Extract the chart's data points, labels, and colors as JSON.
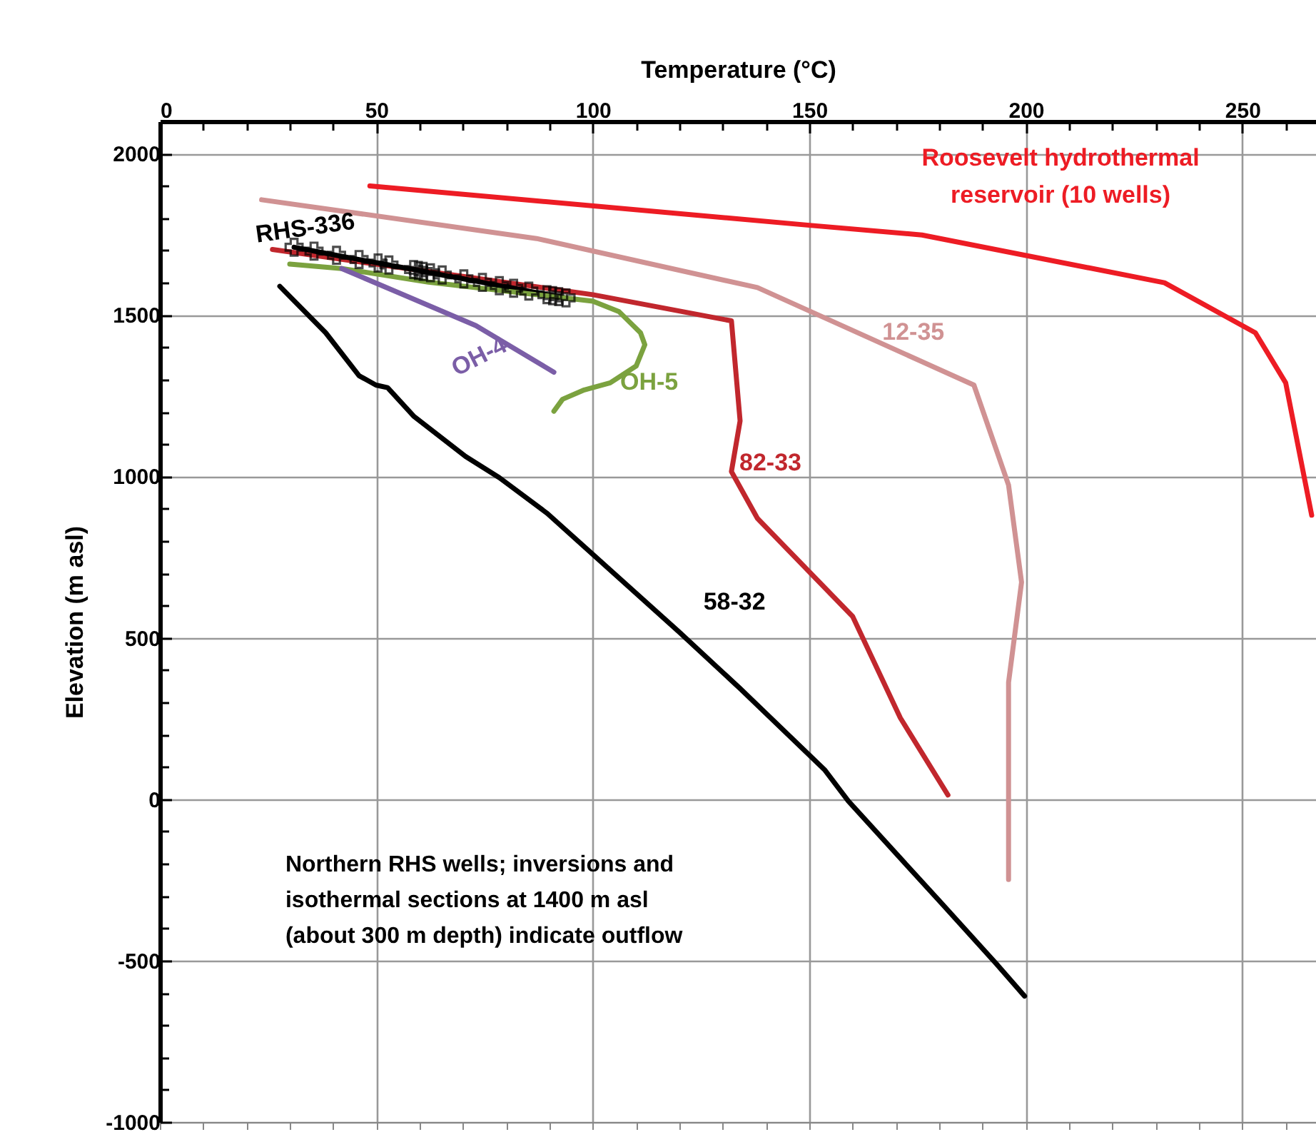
{
  "chart_data": {
    "type": "line",
    "xlabel": "Temperature (°C)",
    "ylabel": "Elevation (m asl)",
    "xlim": [
      0,
      267
    ],
    "ylim": [
      -1000,
      2100
    ],
    "xticks": [
      0,
      {
        "value": 10,
        "label": null
      },
      {
        "value": 20,
        "label": null
      },
      {
        "value": 30,
        "label": null
      },
      {
        "value": 40,
        "label": null
      },
      50,
      {
        "value": 60,
        "label": null
      },
      {
        "value": 70,
        "label": null
      },
      {
        "value": 80,
        "label": null
      },
      {
        "value": 90,
        "label": null
      },
      100,
      {
        "value": 110,
        "label": null
      },
      {
        "value": 120,
        "label": null
      },
      {
        "value": 130,
        "label": null
      },
      {
        "value": 140,
        "label": null
      },
      150,
      {
        "value": 160,
        "label": null
      },
      {
        "value": 170,
        "label": null
      },
      {
        "value": 180,
        "label": null
      },
      {
        "value": 190,
        "label": null
      },
      200,
      {
        "value": 210,
        "label": null
      },
      {
        "value": 220,
        "label": null
      },
      {
        "value": 230,
        "label": null
      },
      {
        "value": 240,
        "label": null
      },
      250,
      {
        "value": 260,
        "label": null
      }
    ],
    "yticks": [
      -1000,
      {
        "value": -900,
        "label": null
      },
      {
        "value": -800,
        "label": null
      },
      {
        "value": -700,
        "label": null
      },
      {
        "value": -600,
        "label": null
      },
      -500,
      {
        "value": -400,
        "label": null
      },
      {
        "value": -300,
        "label": null
      },
      {
        "value": -200,
        "label": null
      },
      {
        "value": -100,
        "label": null
      },
      0,
      {
        "value": 100,
        "label": null
      },
      {
        "value": 200,
        "label": null
      },
      {
        "value": 300,
        "label": null
      },
      {
        "value": 400,
        "label": null
      },
      500,
      {
        "value": 600,
        "label": null
      },
      {
        "value": 700,
        "label": null
      },
      {
        "value": 800,
        "label": null
      },
      {
        "value": 900,
        "label": null
      },
      1000,
      {
        "value": 1100,
        "label": null
      },
      {
        "value": 1200,
        "label": null
      },
      {
        "value": 1300,
        "label": null
      },
      {
        "value": 1400,
        "label": null
      },
      1500,
      {
        "value": 1600,
        "label": null
      },
      {
        "value": 1700,
        "label": null
      },
      {
        "value": 1800,
        "label": null
      },
      {
        "value": 1900,
        "label": null
      },
      2000
    ],
    "grid": true,
    "annotations": [
      "Northern RHS wells; inversions and isothermal sections at 1400 m asl (about 300 m depth) indicate outflow"
    ],
    "series": [
      {
        "name": "Roosevelt hydrothermal reservoir (10 wells)",
        "color": "#ed1c24",
        "x": [
          48.5,
          150,
          176,
          232,
          253,
          260,
          266
        ],
        "values": [
          1900,
          1778,
          1748,
          1600,
          1445,
          1290,
          880
        ]
      },
      {
        "name": "12-35",
        "color": "#d09293",
        "x": [
          23.5,
          87,
          138,
          188,
          196,
          199,
          196,
          196
        ],
        "values": [
          1857,
          1737,
          1585,
          1283,
          973,
          672,
          362,
          -249
        ]
      },
      {
        "name": "82-33",
        "color": "#c1272d",
        "x": [
          26,
          100,
          132,
          134,
          132,
          138,
          160,
          171,
          182
        ],
        "values": [
          1703,
          1563,
          1482,
          1172,
          1015,
          870,
          566,
          252,
          13
        ]
      },
      {
        "name": "RHS-336",
        "color": "#000000",
        "marker": "cross",
        "x": [
          31,
          35.6,
          40.8,
          46,
          50.4,
          52.9,
          58.6,
          59.7,
          60.8,
          62.5,
          65.2,
          70.2,
          74.5,
          78.4,
          81.7,
          85.2,
          89.4,
          90.7,
          92.1,
          93.8
        ],
        "values": [
          1710,
          1698,
          1685,
          1672,
          1661,
          1655,
          1641,
          1638,
          1635,
          1631,
          1624,
          1612,
          1601,
          1591,
          1583,
          1574,
          1563,
          1560,
          1557,
          1553
        ]
      },
      {
        "name": "OH-5",
        "color": "#7ba23f",
        "x": [
          30,
          42,
          62,
          100,
          106,
          111,
          112,
          110,
          104,
          98,
          93,
          91
        ],
        "values": [
          1658,
          1644,
          1602,
          1543,
          1511,
          1445,
          1408,
          1342,
          1290,
          1268,
          1239,
          1202
        ]
      },
      {
        "name": "OH-4",
        "color": "#7b5ea7",
        "x": [
          42,
          55,
          73,
          91
        ],
        "values": [
          1644,
          1570,
          1467,
          1323
        ]
      },
      {
        "name": "58-32",
        "color": "#000000",
        "x": [
          27.7,
          38.3,
          46,
          49.9,
          52.6,
          58.6,
          70.6,
          78.4,
          89.5,
          120,
          134,
          153.6,
          159,
          173,
          180.5,
          193,
          199.7
        ],
        "values": [
          1589,
          1445,
          1312,
          1283,
          1275,
          1187,
          1062,
          996,
          885,
          517,
          343,
          90,
          -6,
          -212,
          -322,
          -507,
          -610
        ]
      }
    ]
  }
}
